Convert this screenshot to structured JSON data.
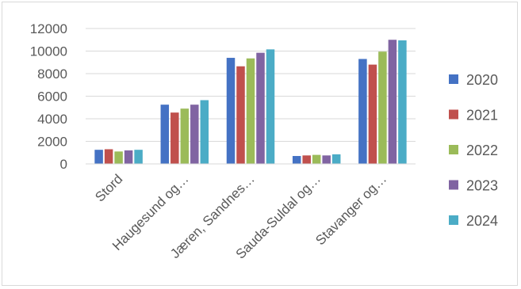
{
  "chart_data": {
    "type": "bar",
    "categories": [
      "Stord",
      "Haugesund og…",
      "Jæren, Sandnes…",
      "Sauda-Suldal og…",
      "Stavanger og…"
    ],
    "series": [
      {
        "name": "2020",
        "color": "#4472c4",
        "values": [
          1250,
          5250,
          9400,
          700,
          9300
        ]
      },
      {
        "name": "2021",
        "color": "#c0504d",
        "values": [
          1300,
          4550,
          8650,
          750,
          8800
        ]
      },
      {
        "name": "2022",
        "color": "#9bbb59",
        "values": [
          1100,
          4900,
          9350,
          800,
          9950
        ]
      },
      {
        "name": "2023",
        "color": "#8064a2",
        "values": [
          1200,
          5250,
          9850,
          750,
          11000
        ]
      },
      {
        "name": "2024",
        "color": "#4bacc6",
        "values": [
          1250,
          5650,
          10150,
          850,
          10950
        ]
      }
    ],
    "yticks": [
      0,
      2000,
      4000,
      6000,
      8000,
      10000,
      12000
    ],
    "ylim": [
      0,
      12000
    ],
    "grid": true,
    "legend_position": "right"
  }
}
